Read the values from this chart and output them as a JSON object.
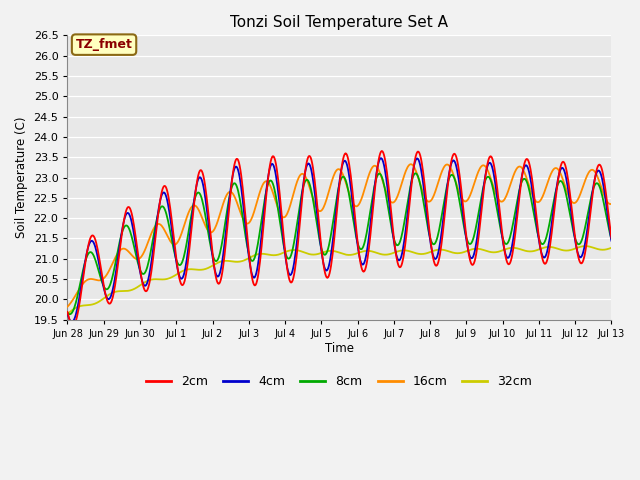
{
  "title": "Tonzi Soil Temperature Set A",
  "xlabel": "Time",
  "ylabel": "Soil Temperature (C)",
  "ylim": [
    19.5,
    26.5
  ],
  "annotation_text": "TZ_fmet",
  "annotation_color": "#8B0000",
  "annotation_bg": "#FFFFC0",
  "line_colors": {
    "2cm": "#FF0000",
    "4cm": "#0000CC",
    "8cm": "#00AA00",
    "16cm": "#FF8C00",
    "32cm": "#CCCC00"
  },
  "bg_color": "#E8E8E8",
  "grid_color": "#FFFFFF",
  "tick_labels": [
    "Jun 28",
    "Jun 29",
    "Jun 30",
    "Jul 1",
    "Jul 2",
    "Jul 3",
    "Jul 4",
    "Jul 5",
    "Jul 6",
    "Jul 7",
    "Jul 8",
    "Jul 9",
    "Jul 10",
    "Jul 11",
    "Jul 12",
    "Jul 13"
  ]
}
